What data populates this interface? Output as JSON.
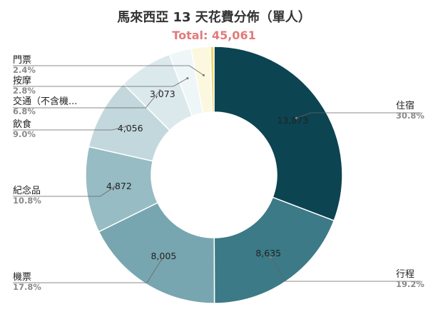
{
  "title": "馬來西亞 13 天花費分佈（單人）",
  "subtitle": "Total: 45,061",
  "colors": {
    "subtitle": "#e27a7a",
    "leader": "#666666"
  },
  "chart_data": {
    "type": "pie",
    "donut": true,
    "title": "馬來西亞 13 天花費分佈（單人）",
    "subtitle": "Total: 45,061",
    "total": 45061,
    "slices": [
      {
        "name": "住宿",
        "value": 13873,
        "value_label": "13,873",
        "percent": "30.8%",
        "color": "#0c4452"
      },
      {
        "name": "行程",
        "value": 8635,
        "value_label": "8,635",
        "percent": "19.2%",
        "color": "#3b7a86"
      },
      {
        "name": "機票",
        "value": 8005,
        "value_label": "8,005",
        "percent": "17.8%",
        "color": "#78a6b0"
      },
      {
        "name": "紀念品",
        "value": 4872,
        "value_label": "4,872",
        "percent": "10.8%",
        "color": "#97bcc3"
      },
      {
        "name": "飲食",
        "value": 4056,
        "value_label": "4,056",
        "percent": "9.0%",
        "color": "#c2d8dd"
      },
      {
        "name": "交通（不含機...",
        "value": 3073,
        "value_label": "3,073",
        "percent": "6.8%",
        "color": "#dbe9ec"
      },
      {
        "name": "按摩",
        "value": 1262,
        "value_label": "",
        "percent": "2.8%",
        "color": "#eef6f8"
      },
      {
        "name": "門票",
        "value": 1082,
        "value_label": "",
        "percent": "2.4%",
        "color": "#fbf8df"
      },
      {
        "name": "",
        "value": 203,
        "value_label": "",
        "percent": "",
        "color": "#f0d76a"
      }
    ]
  }
}
